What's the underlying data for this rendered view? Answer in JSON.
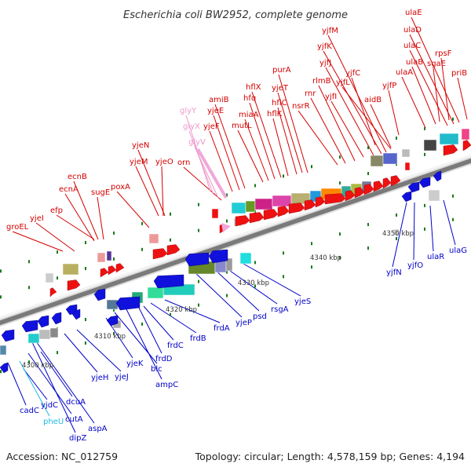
{
  "title": "Escherichia coli BW2952, complete genome",
  "accession": "Accession: NC_012759",
  "summary": "Topology: circular; Length: 4,578,159 bp; Genes: 4,194",
  "colors": {
    "forward_label": "#d40000",
    "reverse_label": "#0000c8",
    "rna_label": "#ee99cc",
    "cyan_label": "#22b8e0",
    "forward_arrow": "#ee1111",
    "reverse_arrow": "#1111dd",
    "backbone_dark": "#777777",
    "backbone_light": "#dddddd",
    "tick": "#1a7a1a"
  },
  "scale_labels": [
    "4300 kbp",
    "4310 kbp",
    "4320 kbp",
    "4330 kbp",
    "4340 kbp",
    "4350 kbp"
  ],
  "forward_genes": [
    {
      "label": "groEL",
      "tone": "forward"
    },
    {
      "label": "yjeI",
      "tone": "forward"
    },
    {
      "label": "efp",
      "tone": "forward"
    },
    {
      "label": "ecnA",
      "tone": "forward"
    },
    {
      "label": "ecnB",
      "tone": "forward"
    },
    {
      "label": "sugE",
      "tone": "forward"
    },
    {
      "label": "poxA",
      "tone": "forward"
    },
    {
      "label": "yjeM",
      "tone": "forward"
    },
    {
      "label": "yjeN",
      "tone": "forward"
    },
    {
      "label": "yjeO",
      "tone": "forward"
    },
    {
      "label": "orn",
      "tone": "forward"
    },
    {
      "label": "glyV",
      "tone": "rna"
    },
    {
      "label": "glyX",
      "tone": "rna"
    },
    {
      "label": "glyY",
      "tone": "rna"
    },
    {
      "label": "yjeF",
      "tone": "forward"
    },
    {
      "label": "yjeE",
      "tone": "forward"
    },
    {
      "label": "amiB",
      "tone": "forward"
    },
    {
      "label": "mutL",
      "tone": "forward"
    },
    {
      "label": "miaA",
      "tone": "forward"
    },
    {
      "label": "hfq",
      "tone": "forward"
    },
    {
      "label": "hflX",
      "tone": "forward"
    },
    {
      "label": "hflK",
      "tone": "forward"
    },
    {
      "label": "hflC",
      "tone": "forward"
    },
    {
      "label": "yjeT",
      "tone": "forward"
    },
    {
      "label": "purA",
      "tone": "forward"
    },
    {
      "label": "nsrR",
      "tone": "forward"
    },
    {
      "label": "rnr",
      "tone": "forward"
    },
    {
      "label": "rlmB",
      "tone": "forward"
    },
    {
      "label": "yjfI",
      "tone": "forward"
    },
    {
      "label": "yjfJ",
      "tone": "forward"
    },
    {
      "label": "yjfK",
      "tone": "forward"
    },
    {
      "label": "yjfM",
      "tone": "forward"
    },
    {
      "label": "yjfL",
      "tone": "forward"
    },
    {
      "label": "yjfC",
      "tone": "forward"
    },
    {
      "label": "aidB",
      "tone": "forward"
    },
    {
      "label": "yjfP",
      "tone": "forward"
    },
    {
      "label": "ulaA",
      "tone": "forward"
    },
    {
      "label": "ulaB",
      "tone": "forward"
    },
    {
      "label": "ulaC",
      "tone": "forward"
    },
    {
      "label": "ulaD",
      "tone": "forward"
    },
    {
      "label": "ulaE",
      "tone": "forward"
    },
    {
      "label": "sgaE",
      "tone": "forward"
    },
    {
      "label": "rpsF",
      "tone": "forward"
    },
    {
      "label": "priB",
      "tone": "forward"
    }
  ],
  "reverse_genes": [
    {
      "label": "cadC",
      "tone": "reverse"
    },
    {
      "label": "yjdC",
      "tone": "reverse"
    },
    {
      "label": "pheU",
      "tone": "cyan"
    },
    {
      "label": "dcuA",
      "tone": "reverse"
    },
    {
      "label": "cutA",
      "tone": "reverse"
    },
    {
      "label": "dipZ",
      "tone": "reverse"
    },
    {
      "label": "aspA",
      "tone": "reverse"
    },
    {
      "label": "yjeH",
      "tone": "reverse"
    },
    {
      "label": "yjeJ",
      "tone": "reverse"
    },
    {
      "label": "yjeK",
      "tone": "reverse"
    },
    {
      "label": "blc",
      "tone": "reverse"
    },
    {
      "label": "ampC",
      "tone": "reverse"
    },
    {
      "label": "frdD",
      "tone": "reverse"
    },
    {
      "label": "frdC",
      "tone": "reverse"
    },
    {
      "label": "frdB",
      "tone": "reverse"
    },
    {
      "label": "frdA",
      "tone": "reverse"
    },
    {
      "label": "yjeP",
      "tone": "reverse"
    },
    {
      "label": "psd",
      "tone": "reverse"
    },
    {
      "label": "rsgA",
      "tone": "reverse"
    },
    {
      "label": "yjeS",
      "tone": "reverse"
    },
    {
      "label": "yjfN",
      "tone": "reverse"
    },
    {
      "label": "yjfO",
      "tone": "reverse"
    },
    {
      "label": "ulaR",
      "tone": "reverse"
    },
    {
      "label": "ulaG",
      "tone": "reverse"
    }
  ]
}
